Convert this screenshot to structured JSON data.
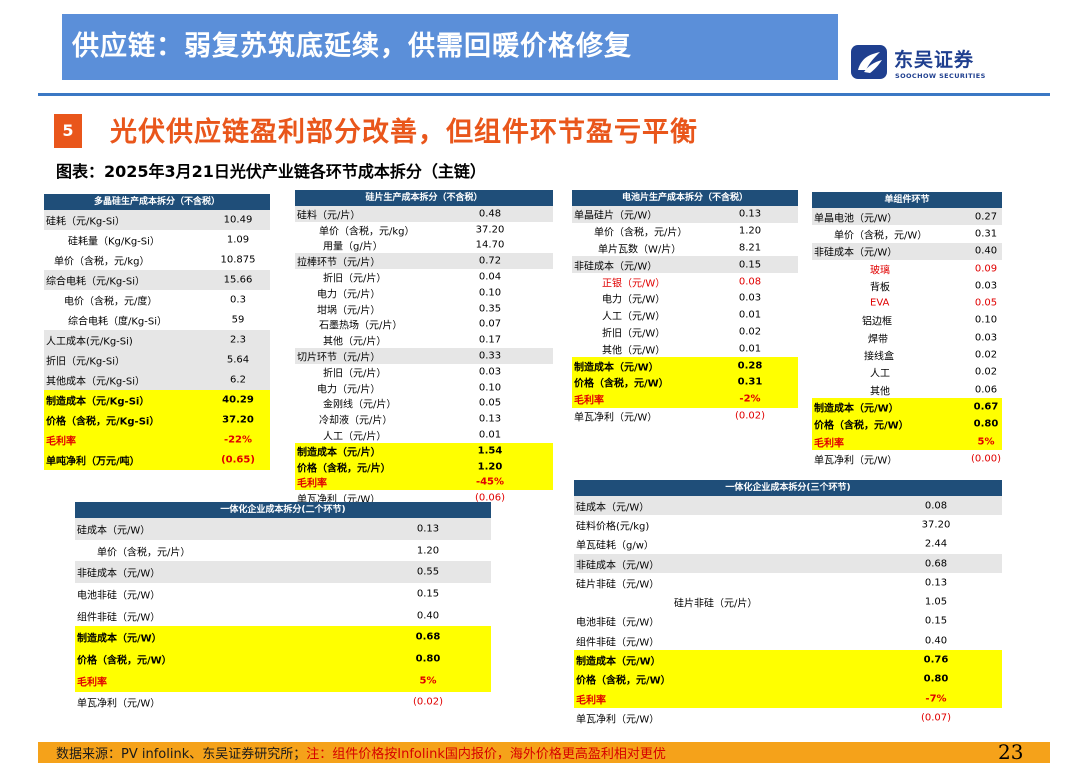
{
  "header": {
    "title": "供应链：弱复苏筑底延续，供需回暖价格修复"
  },
  "logo": {
    "cn": "东吴证券",
    "en": "SOOCHOW SECURITIES"
  },
  "section": {
    "number": "5",
    "title": "光伏供应链盈利部分改善，但组件环节盈亏平衡"
  },
  "figure": {
    "caption": "图表：2025年3月21日光伏产业链各环节成本拆分（主链）"
  },
  "tables": {
    "poly": {
      "title": "多晶硅生产成本拆分（不含税）",
      "rows": [
        {
          "label": "硅耗（元/Kg-Si）",
          "value": "10.49"
        },
        {
          "label": "硅耗量（Kg/Kg-Si）",
          "value": "1.09"
        },
        {
          "label": "单价（含税，元/kg）",
          "value": "10.875"
        },
        {
          "label": "综合电耗（元/Kg-Si）",
          "value": "15.66"
        },
        {
          "label": "电价（含税，元/度）",
          "value": "0.3"
        },
        {
          "label": "综合电耗（度/Kg-Si）",
          "value": "59"
        },
        {
          "label": "人工成本(元/Kg-Si)",
          "value": "2.3"
        },
        {
          "label": "折旧（元/Kg-Si）",
          "value": "5.64"
        },
        {
          "label": "其他成本（元/Kg-Si）",
          "value": "6.2"
        },
        {
          "label": "制造成本（元/Kg-Si）",
          "value": "40.29"
        },
        {
          "label": "价格（含税，元/Kg-Si）",
          "value": "37.20"
        },
        {
          "label": "毛利率",
          "value": "-22%"
        },
        {
          "label": "单吨净利（万元/吨）",
          "value": "(0.65)"
        }
      ]
    },
    "wafer": {
      "title": "硅片生产成本拆分（不含税）",
      "rows": [
        {
          "label": "硅料（元/片）",
          "value": "0.48"
        },
        {
          "label": "单价（含税，元/kg）",
          "value": "37.20"
        },
        {
          "label": "用量（g/片）",
          "value": "14.70"
        },
        {
          "label": "拉棒环节（元/片）",
          "value": "0.72"
        },
        {
          "label": "折旧（元/片）",
          "value": "0.04"
        },
        {
          "label": "电力（元/片）",
          "value": "0.10"
        },
        {
          "label": "坩埚（元/片）",
          "value": "0.35"
        },
        {
          "label": "石墨热场（元/片）",
          "value": "0.07"
        },
        {
          "label": "其他（元/片）",
          "value": "0.17"
        },
        {
          "label": "切片环节（元/片）",
          "value": "0.33"
        },
        {
          "label": "折旧（元/片）",
          "value": "0.03"
        },
        {
          "label": "电力（元/片）",
          "value": "0.10"
        },
        {
          "label": "金刚线（元/片）",
          "value": "0.05"
        },
        {
          "label": "冷却液（元/片）",
          "value": "0.13"
        },
        {
          "label": "人工（元/片）",
          "value": "0.01"
        },
        {
          "label": "制造成本（元/片）",
          "value": "1.54"
        },
        {
          "label": "价格（含税，元/片）",
          "value": "1.20"
        },
        {
          "label": "毛利率",
          "value": "-45%"
        },
        {
          "label": "单瓦净利（元/W）",
          "value": "(0.06)"
        }
      ]
    },
    "cell": {
      "title": "电池片生产成本拆分（不含税）",
      "rows": [
        {
          "label": "单晶硅片（元/W）",
          "value": "0.13"
        },
        {
          "label": "单价（含税，元/片）",
          "value": "1.20"
        },
        {
          "label": "单片瓦数（W/片）",
          "value": "8.21"
        },
        {
          "label": "非硅成本（元/W）",
          "value": "0.15"
        },
        {
          "label": "正银（元/W）",
          "value": "0.08"
        },
        {
          "label": "电力（元/W）",
          "value": "0.03"
        },
        {
          "label": "人工（元/W）",
          "value": "0.01"
        },
        {
          "label": "折旧（元/W）",
          "value": "0.02"
        },
        {
          "label": "其他（元/W）",
          "value": "0.01"
        },
        {
          "label": "制造成本（元/W）",
          "value": "0.28"
        },
        {
          "label": "价格（含税，元/W）",
          "value": "0.31"
        },
        {
          "label": "毛利率",
          "value": "-2%"
        },
        {
          "label": "单瓦净利（元/W）",
          "value": "(0.02)"
        }
      ]
    },
    "module": {
      "title": "单组件环节",
      "rows": [
        {
          "label": "单晶电池（元/W）",
          "value": "0.27"
        },
        {
          "label": "单价（含税，元/W）",
          "value": "0.31"
        },
        {
          "label": "非硅成本（元/W）",
          "value": "0.40"
        },
        {
          "label": "玻璃",
          "value": "0.09"
        },
        {
          "label": "背板",
          "value": "0.03"
        },
        {
          "label": "EVA",
          "value": "0.05"
        },
        {
          "label": "铝边框",
          "value": "0.10"
        },
        {
          "label": "焊带",
          "value": "0.03"
        },
        {
          "label": "接线盒",
          "value": "0.02"
        },
        {
          "label": "人工",
          "value": "0.02"
        },
        {
          "label": "其他",
          "value": "0.06"
        },
        {
          "label": "制造成本（元/W）",
          "value": "0.67"
        },
        {
          "label": "价格（含税，元/W）",
          "value": "0.80"
        },
        {
          "label": "毛利率",
          "value": "5%"
        },
        {
          "label": "单瓦净利（元/W）",
          "value": "(0.00)"
        }
      ]
    },
    "integrated2": {
      "title": "一体化企业成本拆分(二个环节)",
      "rows": [
        {
          "label": "硅成本（元/W）",
          "value": "0.13"
        },
        {
          "label": "单价（含税，元/片）",
          "value": "1.20"
        },
        {
          "label": "非硅成本（元/W）",
          "value": "0.55"
        },
        {
          "label": "电池非硅（元/W）",
          "value": "0.15"
        },
        {
          "label": "组件非硅（元/W）",
          "value": "0.40"
        },
        {
          "label": "制造成本（元/W）",
          "value": "0.68"
        },
        {
          "label": "价格（含税，元/W）",
          "value": "0.80"
        },
        {
          "label": "毛利率",
          "value": "5%"
        },
        {
          "label": "单瓦净利（元/W）",
          "value": "(0.02)"
        }
      ]
    },
    "integrated3": {
      "title": "一体化企业成本拆分(三个环节)",
      "rows": [
        {
          "label": "硅成本（元/W）",
          "value": "0.08"
        },
        {
          "label": "硅料价格(元/kg)",
          "value": "37.20"
        },
        {
          "label": "单瓦硅耗（g/w）",
          "value": "2.44"
        },
        {
          "label": "非硅成本（元/W）",
          "value": "0.68"
        },
        {
          "label": "硅片非硅（元/W）",
          "value": "0.13"
        },
        {
          "label": "硅片非硅（元/片）",
          "value": "1.05"
        },
        {
          "label": "电池非硅（元/W）",
          "value": "0.15"
        },
        {
          "label": "组件非硅（元/W）",
          "value": "0.40"
        },
        {
          "label": "制造成本（元/W）",
          "value": "0.76"
        },
        {
          "label": "价格（含税，元/W）",
          "value": "0.80"
        },
        {
          "label": "毛利率",
          "value": "-7%"
        },
        {
          "label": "单瓦净利（元/W）",
          "value": "(0.07)"
        }
      ]
    }
  },
  "footer": {
    "source": "数据来源：PV infolink、东吴证券研究所；",
    "note": "注：组件价格按Infolink国内报价，海外价格更高盈利相对更优",
    "page": "23"
  },
  "colors": {
    "header_band": "#5b8fd9",
    "accent_orange": "#e9561b",
    "table_header": "#1f4e79",
    "highlight": "#ffff00",
    "negative_red": "#e00000",
    "footer_band": "#f5a21a"
  }
}
